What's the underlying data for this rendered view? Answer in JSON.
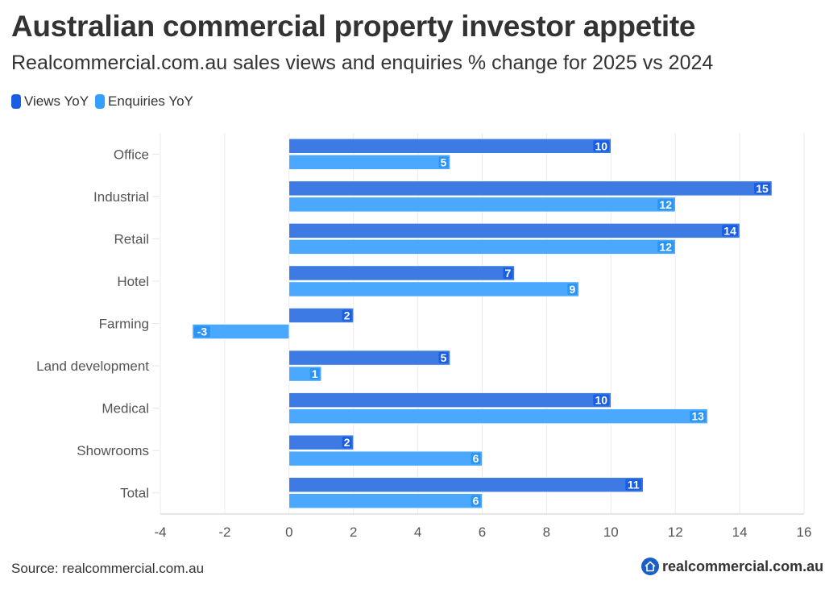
{
  "header": {
    "title": "Australian commercial property investor appetite",
    "subtitle": "Realcommercial.com.au sales views and enquiries % change for 2025 vs 2024"
  },
  "legend": [
    {
      "label": "Views YoY",
      "color": "#1a5ee3"
    },
    {
      "label": "Enquiries YoY",
      "color": "#33a0ff"
    }
  ],
  "footer": {
    "source": "Source: realcommercial.com.au",
    "brand": "realcommercial.com.au",
    "brand_icon": "house-icon",
    "brand_color": "#1a5ec7"
  },
  "chart_data": {
    "type": "bar",
    "orientation": "horizontal",
    "title": "Australian commercial property investor appetite",
    "subtitle": "Realcommercial.com.au sales views and enquiries % change for 2025 vs 2024",
    "xlabel": "",
    "ylabel": "",
    "categories": [
      "Office",
      "Industrial",
      "Retail",
      "Hotel",
      "Farming",
      "Land development",
      "Medical",
      "Showrooms",
      "Total"
    ],
    "series": [
      {
        "name": "Views YoY",
        "color": "#3d7ae3",
        "label_bg": "#1a5ee3",
        "values": [
          10,
          15,
          14,
          7,
          2,
          5,
          10,
          2,
          11
        ]
      },
      {
        "name": "Enquiries YoY",
        "color": "#4aa8ff",
        "label_bg": "#2b95f5",
        "values": [
          5,
          12,
          12,
          9,
          -3,
          1,
          13,
          6,
          6
        ]
      }
    ],
    "xlim": [
      -4,
      16
    ],
    "xticks": [
      -4,
      -2,
      0,
      2,
      4,
      6,
      8,
      10,
      12,
      14,
      16
    ],
    "grid": true,
    "legend_position": "top-left",
    "data_labels": true
  }
}
